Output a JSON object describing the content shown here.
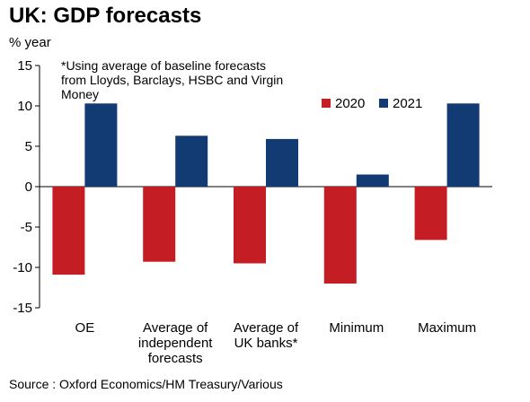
{
  "chart_data": {
    "type": "bar",
    "title": "UK: GDP forecasts",
    "ylabel": "% year",
    "xlabel": "",
    "categories": [
      [
        "OE"
      ],
      [
        "Average of",
        "independent",
        "forecasts"
      ],
      [
        "Average of",
        "UK banks*"
      ],
      [
        "Minimum"
      ],
      [
        "Maximum"
      ]
    ],
    "series": [
      {
        "name": "2020",
        "color": "#c41e24",
        "values": [
          -10.9,
          -9.3,
          -9.5,
          -12.0,
          -6.6
        ]
      },
      {
        "name": "2021",
        "color": "#123b73",
        "values": [
          10.3,
          6.3,
          5.9,
          1.5,
          10.3
        ]
      }
    ],
    "ylim": [
      -15,
      15
    ],
    "yticks": [
      15,
      10,
      5,
      0,
      -5,
      -10,
      -15
    ],
    "grid": false,
    "legend_position": "top-right",
    "annotation": [
      "*Using average of baseline forecasts",
      "from Lloyds, Barclays, HSBC and Virgin",
      "Money"
    ],
    "source": "Source : Oxford Economics/HM Treasury/Various"
  }
}
